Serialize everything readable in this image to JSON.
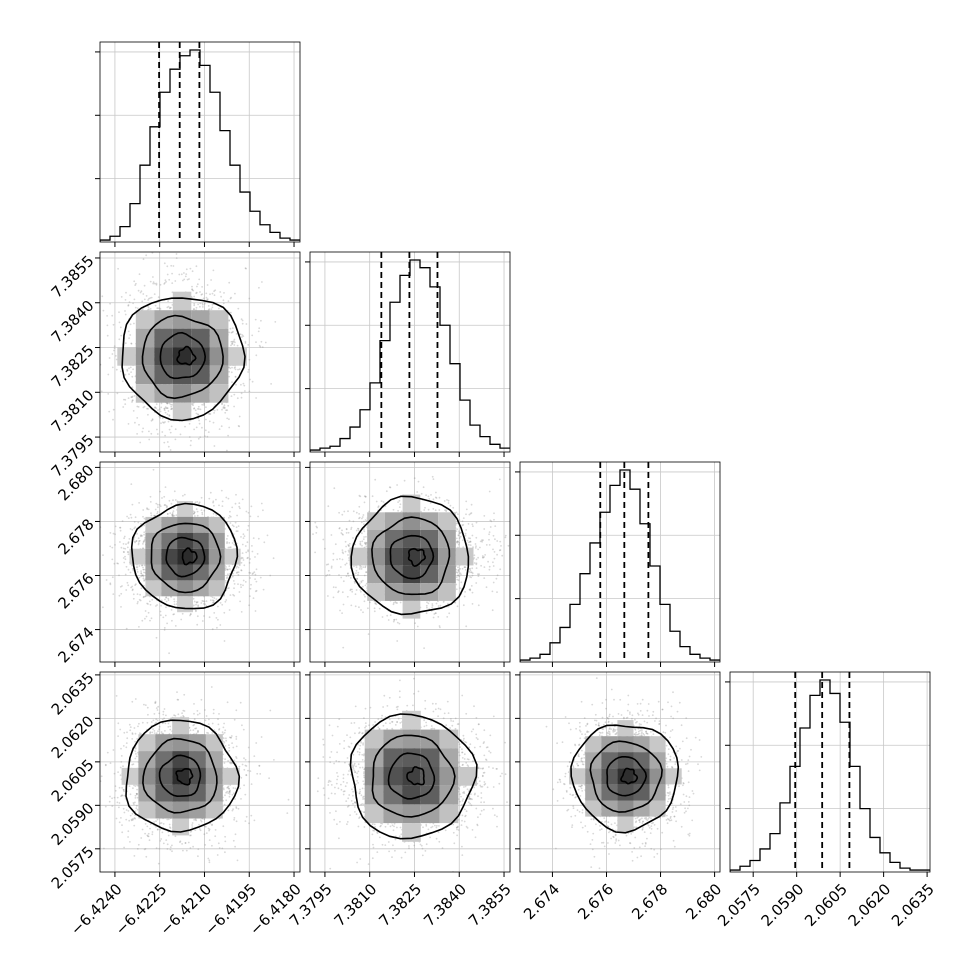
{
  "chart_data": {
    "type": "corner",
    "title": "",
    "grid": true,
    "quantiles": [
      0.16,
      0.5,
      0.84
    ],
    "parameters": [
      {
        "mean": -6.4216,
        "std": 0.0009,
        "range": [
          -6.4245,
          -6.4178
        ],
        "ticks": [
          -6.424,
          -6.4225,
          -6.421,
          -6.4195,
          -6.418
        ],
        "tick_labels": [
          "−6.4240",
          "−6.4225",
          "−6.4210",
          "−6.4195",
          "−6.4180"
        ],
        "quantile_values": [
          -6.42252,
          -6.42183,
          -6.42117
        ],
        "histogram": [
          0.01,
          0.03,
          0.08,
          0.2,
          0.4,
          0.6,
          0.78,
          0.9,
          0.97,
          1.0,
          0.92,
          0.78,
          0.58,
          0.4,
          0.26,
          0.16,
          0.09,
          0.05,
          0.02,
          0.01
        ]
      },
      {
        "mean": 7.3825,
        "std": 0.0011,
        "range": [
          7.379,
          7.3857
        ],
        "ticks": [
          7.3795,
          7.381,
          7.3825,
          7.384,
          7.3855
        ],
        "tick_labels": [
          "7.3795",
          "7.3810",
          "7.3825",
          "7.3840",
          "7.3855"
        ],
        "quantile_values": [
          7.38139,
          7.38233,
          7.38327
        ],
        "histogram": [
          0.01,
          0.02,
          0.03,
          0.07,
          0.13,
          0.22,
          0.36,
          0.58,
          0.78,
          0.92,
          1.0,
          0.96,
          0.86,
          0.66,
          0.46,
          0.27,
          0.14,
          0.08,
          0.04,
          0.02
        ]
      },
      {
        "mean": 2.6767,
        "std": 0.0009,
        "range": [
          2.6728,
          2.6802
        ],
        "ticks": [
          2.674,
          2.676,
          2.678,
          2.68
        ],
        "tick_labels": [
          "2.674",
          "2.676",
          "2.678",
          "2.680"
        ],
        "quantile_values": [
          2.67577,
          2.67666,
          2.67755
        ],
        "histogram": [
          0.01,
          0.02,
          0.04,
          0.1,
          0.18,
          0.3,
          0.46,
          0.62,
          0.78,
          0.92,
          1.0,
          0.9,
          0.72,
          0.5,
          0.3,
          0.16,
          0.08,
          0.04,
          0.02,
          0.01
        ]
      },
      {
        "mean": 2.0599,
        "std": 0.00095,
        "range": [
          2.0567,
          2.0636
        ],
        "ticks": [
          2.0575,
          2.059,
          2.0605,
          2.062,
          2.0635
        ],
        "tick_labels": [
          "2.0575",
          "2.0590",
          "2.0605",
          "2.0620",
          "2.0635"
        ],
        "quantile_values": [
          2.05895,
          2.05988,
          2.06082
        ],
        "histogram": [
          0.01,
          0.03,
          0.06,
          0.12,
          0.2,
          0.36,
          0.55,
          0.75,
          0.92,
          1.0,
          0.93,
          0.78,
          0.55,
          0.33,
          0.18,
          0.1,
          0.05,
          0.02,
          0.01,
          0.01
        ]
      }
    ],
    "pairs": [
      {
        "row": 1,
        "col": 0,
        "center": [
          -6.42175,
          7.3822
        ]
      },
      {
        "row": 2,
        "col": 0,
        "center": [
          -6.42165,
          2.6767
        ]
      },
      {
        "row": 2,
        "col": 1,
        "center": [
          7.3824,
          2.6767
        ]
      },
      {
        "row": 3,
        "col": 0,
        "center": [
          -6.4218,
          2.06
        ]
      },
      {
        "row": 3,
        "col": 1,
        "center": [
          7.3824,
          2.06
        ]
      },
      {
        "row": 3,
        "col": 2,
        "center": [
          2.6767,
          2.06
        ]
      }
    ]
  }
}
